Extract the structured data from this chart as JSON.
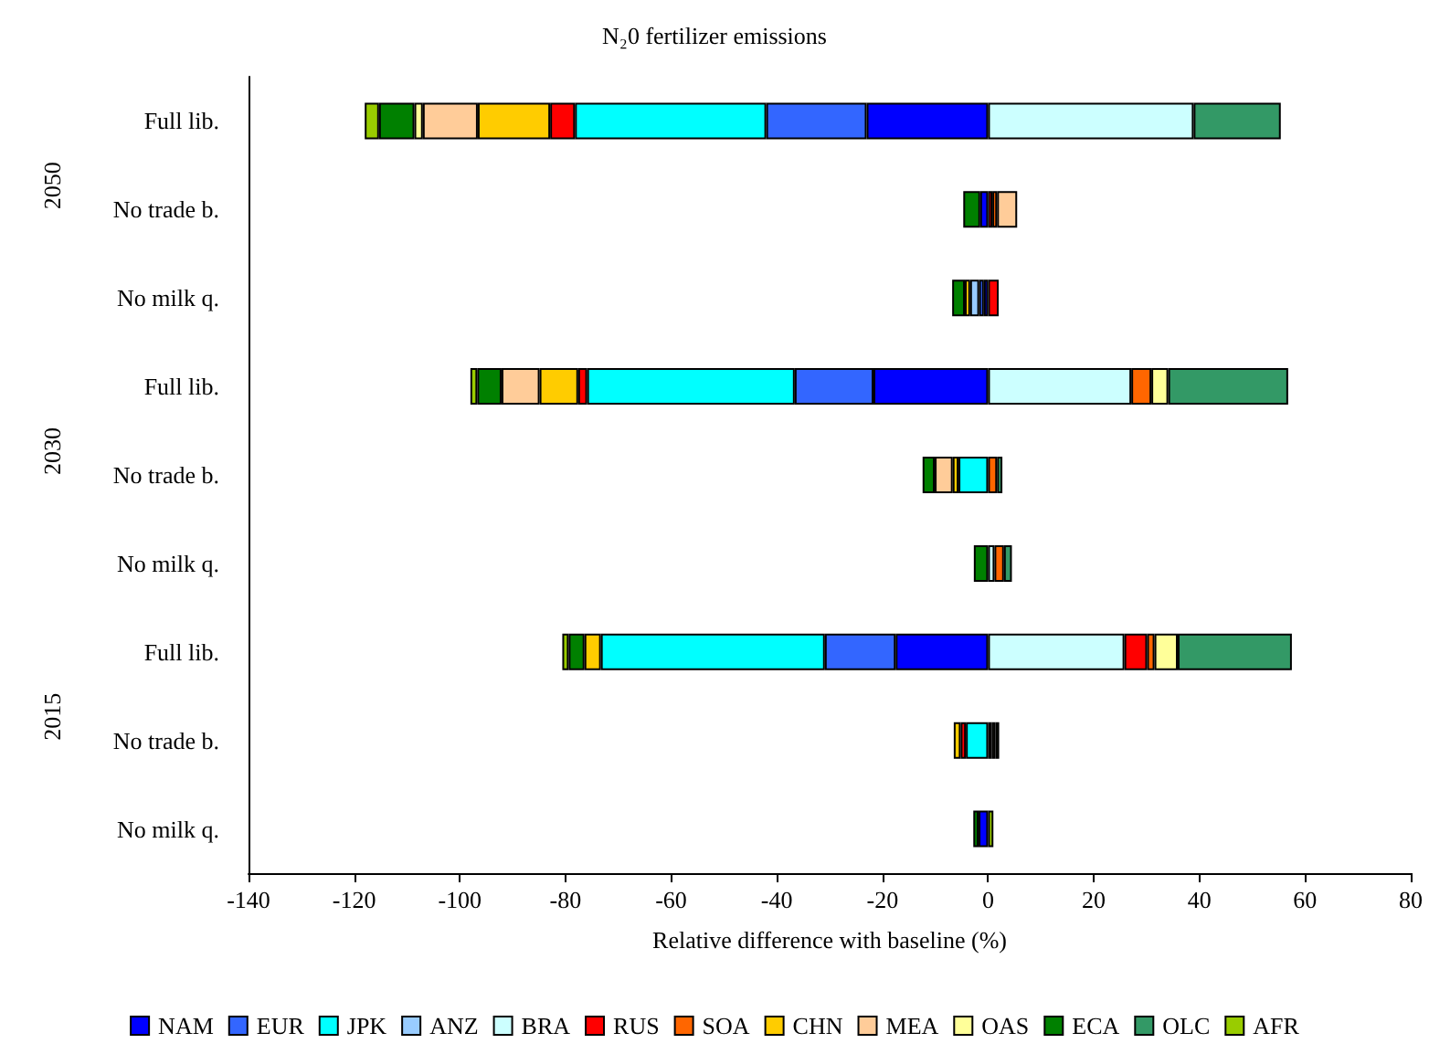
{
  "chart_data": {
    "type": "bar",
    "orientation": "horizontal",
    "stacked": true,
    "title": "N₂0 fertilizer emissions",
    "xlabel": "Relative difference with baseline (%)",
    "annotations": [
      "2050",
      "2030",
      "2015"
    ],
    "categories": [
      "Full lib.",
      "No trade b.",
      "No milk q.",
      "Full lib.",
      "No trade b.",
      "No milk q.",
      "Full lib.",
      "No trade b.",
      "No milk q."
    ],
    "xlim": [
      -140,
      80
    ],
    "xticks": [
      -140,
      -120,
      -100,
      -80,
      -60,
      -40,
      -20,
      0,
      20,
      40,
      60,
      80
    ],
    "grid": false,
    "legend": "bottom",
    "series": [
      {
        "name": "NAM",
        "color": "#0000ff",
        "values": [
          -23.0,
          -1.5,
          -0.8,
          -21.7,
          null,
          null,
          -17.5,
          null,
          -1.8
        ]
      },
      {
        "name": "EUR",
        "color": "#3366ff",
        "values": [
          -19.0,
          null,
          -0.9,
          -14.9,
          null,
          null,
          -13.4,
          null,
          null
        ]
      },
      {
        "name": "JPK",
        "color": "#00ffff",
        "values": [
          -36.2,
          null,
          null,
          -39.3,
          -5.6,
          null,
          -42.4,
          -4.2,
          null
        ]
      },
      {
        "name": "ANZ",
        "color": "#99ccff",
        "values": [
          null,
          null,
          -1.7,
          null,
          null,
          null,
          null,
          null,
          null
        ]
      },
      {
        "name": "BRA",
        "color": "#ccffff",
        "values": [
          38.9,
          null,
          null,
          27.1,
          null,
          1.2,
          25.8,
          null,
          null
        ]
      },
      {
        "name": "RUS",
        "color": "#ff0000",
        "values": [
          -4.7,
          0.8,
          2.0,
          -1.7,
          null,
          null,
          4.3,
          -1.0,
          null
        ]
      },
      {
        "name": "SOA",
        "color": "#ff6600",
        "values": [
          null,
          0.9,
          null,
          3.8,
          1.7,
          1.8,
          1.4,
          0.7,
          null
        ]
      },
      {
        "name": "CHN",
        "color": "#ffcc00",
        "values": [
          -13.7,
          null,
          -1.0,
          -7.3,
          -1.1,
          null,
          -3.1,
          -1.3,
          null
        ]
      },
      {
        "name": "MEA",
        "color": "#ffcc99",
        "values": [
          -10.4,
          3.8,
          null,
          -7.2,
          -3.4,
          null,
          null,
          null,
          null
        ]
      },
      {
        "name": "OAS",
        "color": "#ffff99",
        "values": [
          -1.6,
          null,
          null,
          3.2,
          null,
          null,
          4.4,
          0.7,
          null
        ]
      },
      {
        "name": "ECA",
        "color": "#008000",
        "values": [
          -6.7,
          -3.2,
          -2.4,
          -4.6,
          -2.3,
          -2.7,
          -3.0,
          null,
          -1.0
        ]
      },
      {
        "name": "OLC",
        "color": "#339966",
        "values": [
          16.5,
          null,
          null,
          22.7,
          1.0,
          1.5,
          21.6,
          null,
          null
        ]
      },
      {
        "name": "AFR",
        "color": "#99cc00",
        "values": [
          -2.7,
          null,
          null,
          -1.3,
          null,
          null,
          -1.2,
          0.7,
          1.0
        ]
      }
    ]
  }
}
